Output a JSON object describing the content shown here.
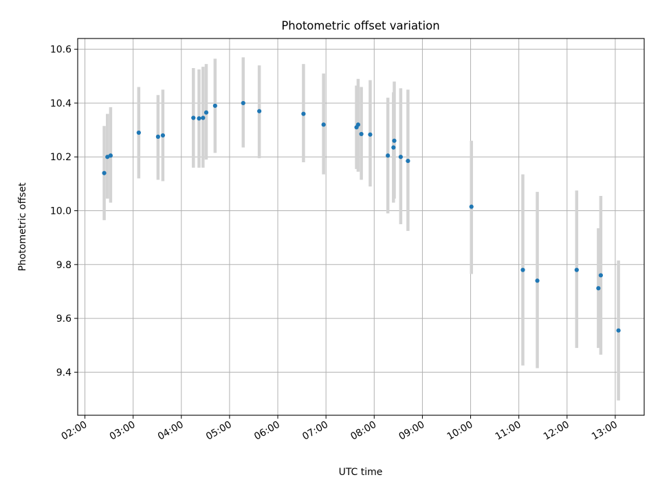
{
  "chart_data": {
    "type": "scatter",
    "title": "Photometric offset variation",
    "xlabel": "UTC time",
    "ylabel": "Photometric offset",
    "x_tick_labels": [
      "02:00",
      "03:00",
      "04:00",
      "05:00",
      "06:00",
      "07:00",
      "08:00",
      "09:00",
      "10:00",
      "11:00",
      "12:00",
      "13:00"
    ],
    "y_tick_labels": [
      "9.4",
      "9.6",
      "9.8",
      "10.0",
      "10.2",
      "10.4",
      "10.6"
    ],
    "y_ticks": [
      9.4,
      9.6,
      9.8,
      10.0,
      10.2,
      10.4,
      10.6
    ],
    "xlim": [
      "01:51",
      "13:36"
    ],
    "ylim": [
      9.24,
      10.64
    ],
    "grid": true,
    "point_color": "#1f77b4",
    "errorbar_color": "#d3d3d3",
    "points": [
      {
        "x": "02:24",
        "y": 10.14,
        "ylow": 9.965,
        "yhigh": 10.315
      },
      {
        "x": "02:28",
        "y": 10.2,
        "ylow": 10.045,
        "yhigh": 10.36
      },
      {
        "x": "02:32",
        "y": 10.205,
        "ylow": 10.03,
        "yhigh": 10.385
      },
      {
        "x": "03:07",
        "y": 10.29,
        "ylow": 10.12,
        "yhigh": 10.46
      },
      {
        "x": "03:31",
        "y": 10.275,
        "ylow": 10.115,
        "yhigh": 10.43
      },
      {
        "x": "03:37",
        "y": 10.28,
        "ylow": 10.11,
        "yhigh": 10.45
      },
      {
        "x": "04:15",
        "y": 10.345,
        "ylow": 10.16,
        "yhigh": 10.53
      },
      {
        "x": "04:22",
        "y": 10.343,
        "ylow": 10.16,
        "yhigh": 10.525
      },
      {
        "x": "04:27",
        "y": 10.345,
        "ylow": 10.16,
        "yhigh": 10.535
      },
      {
        "x": "04:31",
        "y": 10.365,
        "ylow": 10.19,
        "yhigh": 10.545
      },
      {
        "x": "04:42",
        "y": 10.39,
        "ylow": 10.215,
        "yhigh": 10.565
      },
      {
        "x": "05:17",
        "y": 10.4,
        "ylow": 10.235,
        "yhigh": 10.57
      },
      {
        "x": "05:37",
        "y": 10.37,
        "ylow": 10.195,
        "yhigh": 10.54
      },
      {
        "x": "06:32",
        "y": 10.36,
        "ylow": 10.18,
        "yhigh": 10.545
      },
      {
        "x": "06:57",
        "y": 10.32,
        "ylow": 10.135,
        "yhigh": 10.51
      },
      {
        "x": "07:38",
        "y": 10.31,
        "ylow": 10.155,
        "yhigh": 10.465
      },
      {
        "x": "07:40",
        "y": 10.32,
        "ylow": 10.145,
        "yhigh": 10.49
      },
      {
        "x": "07:44",
        "y": 10.285,
        "ylow": 10.115,
        "yhigh": 10.46
      },
      {
        "x": "07:55",
        "y": 10.283,
        "ylow": 10.09,
        "yhigh": 10.485
      },
      {
        "x": "08:17",
        "y": 10.205,
        "ylow": 9.99,
        "yhigh": 10.42
      },
      {
        "x": "08:24",
        "y": 10.235,
        "ylow": 10.03,
        "yhigh": 10.44
      },
      {
        "x": "08:25",
        "y": 10.26,
        "ylow": 10.045,
        "yhigh": 10.48
      },
      {
        "x": "08:33",
        "y": 10.2,
        "ylow": 9.95,
        "yhigh": 10.455
      },
      {
        "x": "08:42",
        "y": 10.185,
        "ylow": 9.925,
        "yhigh": 10.45
      },
      {
        "x": "10:01",
        "y": 10.015,
        "ylow": 9.765,
        "yhigh": 10.26
      },
      {
        "x": "11:05",
        "y": 9.78,
        "ylow": 9.425,
        "yhigh": 10.135
      },
      {
        "x": "11:23",
        "y": 9.74,
        "ylow": 9.415,
        "yhigh": 10.07
      },
      {
        "x": "12:12",
        "y": 9.78,
        "ylow": 9.49,
        "yhigh": 10.075
      },
      {
        "x": "12:39",
        "y": 9.712,
        "ylow": 9.49,
        "yhigh": 9.935
      },
      {
        "x": "12:42",
        "y": 9.76,
        "ylow": 9.465,
        "yhigh": 10.055
      },
      {
        "x": "13:04",
        "y": 9.555,
        "ylow": 9.295,
        "yhigh": 9.815
      }
    ]
  }
}
